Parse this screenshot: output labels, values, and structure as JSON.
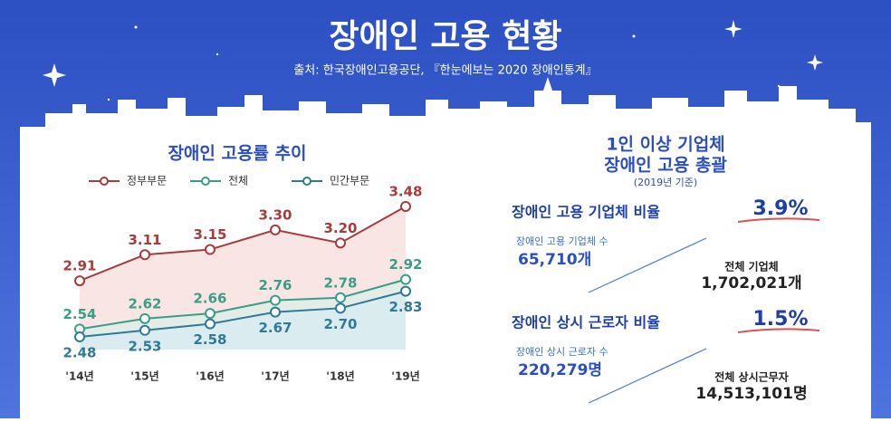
{
  "header": {
    "title": "장애인 고용 현황",
    "source": "출처: 한국장애인고용공단, 『한눈에보는 2020 장애인통계』"
  },
  "chart_data": {
    "type": "line",
    "title": "장애인 고용률 추이",
    "categories": [
      "'14년",
      "'15년",
      "'16년",
      "'17년",
      "'18년",
      "'19년"
    ],
    "series": [
      {
        "name": "정부부문",
        "color": "#a83b3b",
        "values": [
          2.91,
          3.11,
          3.15,
          3.3,
          3.2,
          3.48
        ],
        "value_labels": [
          "2.91",
          "3.11",
          "3.15",
          "3.30",
          "3.20",
          "3.48"
        ]
      },
      {
        "name": "전체",
        "color": "#3a9e86",
        "values": [
          2.54,
          2.62,
          2.66,
          2.76,
          2.78,
          2.92
        ],
        "value_labels": [
          "2.54",
          "2.62",
          "2.66",
          "2.76",
          "2.78",
          "2.92"
        ]
      },
      {
        "name": "민간부문",
        "color": "#2f7a96",
        "values": [
          2.48,
          2.53,
          2.58,
          2.67,
          2.7,
          2.83
        ],
        "value_labels": [
          "2.48",
          "2.53",
          "2.58",
          "2.67",
          "2.70",
          "2.83"
        ]
      }
    ],
    "legend": "top"
  },
  "summary": {
    "heading": [
      "1인 이상 기업체",
      "장애인 고용 총괄"
    ],
    "basis": "(2019년 기준)",
    "stats": [
      {
        "label": "장애인 고용 기업체 비율",
        "value": "3.9%",
        "part": {
          "label": "장애인 고용 기업체 수",
          "value": "65,710개"
        },
        "total": {
          "label": "전체 기업체",
          "value": "1,702,021개"
        }
      },
      {
        "label": "장애인 상시 근로자 비율",
        "value": "1.5%",
        "part": {
          "label": "장애인 상시 근로자 수",
          "value": "220,279명"
        },
        "total": {
          "label": "전체 상시근무자",
          "value": "14,513,101명"
        }
      }
    ]
  }
}
